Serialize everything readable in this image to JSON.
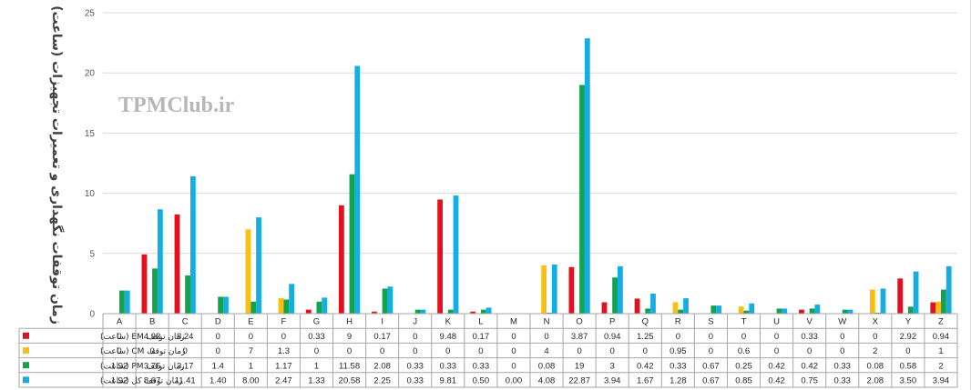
{
  "chart_data": {
    "type": "bar",
    "watermark": "TPMClub.ir",
    "ylabel": "زمان توقفات نگهداری و تعمیرات تجهیزات (ساعت)",
    "ylim": [
      0,
      25
    ],
    "yticks": [
      0,
      5,
      10,
      15,
      20,
      25
    ],
    "grid": true,
    "legend_placement": "data-table-left",
    "categories": [
      "A",
      "B",
      "C",
      "D",
      "E",
      "F",
      "G",
      "H",
      "I",
      "J",
      "K",
      "L",
      "M",
      "N",
      "O",
      "P",
      "Q",
      "R",
      "S",
      "T",
      "U",
      "V",
      "W",
      "X",
      "Y",
      "Z"
    ],
    "series": [
      {
        "name": "زمان توقف EM (ساعت)",
        "color": "#e3111d",
        "values": [
          0,
          4.92,
          8.24,
          0,
          0,
          0,
          0.33,
          9,
          0.17,
          0,
          9.48,
          0.17,
          0,
          0,
          3.87,
          0.94,
          1.25,
          0,
          0,
          0,
          0,
          0.33,
          0,
          0,
          2.92,
          0.94
        ],
        "labels": [
          "0",
          "4.92",
          "8.24",
          "0",
          "0",
          "0",
          "0.33",
          "9",
          "0.17",
          "0",
          "9.48",
          "0.17",
          "0",
          "0",
          "3.87",
          "0.94",
          "1.25",
          "0",
          "0",
          "0",
          "0",
          "0.33",
          "0",
          "0",
          "2.92",
          "0.94"
        ]
      },
      {
        "name": "زمان توقف CM (ساعت)",
        "color": "#fbbf12",
        "values": [
          0,
          0,
          0,
          0,
          7,
          1.3,
          0,
          0,
          0,
          0,
          0,
          0,
          0,
          4,
          0,
          0,
          0,
          0.95,
          0,
          0.6,
          0,
          0,
          0,
          2,
          0,
          1
        ],
        "labels": [
          "0",
          "0",
          "0",
          "0",
          "7",
          "1.3",
          "0",
          "0",
          "0",
          "0",
          "0",
          "0",
          "0",
          "4",
          "0",
          "0",
          "0",
          "0.95",
          "0",
          "0.6",
          "0",
          "0",
          "0",
          "2",
          "0",
          "1"
        ]
      },
      {
        "name": "زمان توقف PM (ساعت)",
        "color": "#13a24d",
        "values": [
          1.92,
          3.75,
          3.17,
          1.4,
          1,
          1.17,
          1,
          11.58,
          2.08,
          0.33,
          0.33,
          0.33,
          0,
          0.08,
          19,
          3,
          0.42,
          0.33,
          0.67,
          0.25,
          0.42,
          0.42,
          0.33,
          0.08,
          0.58,
          2
        ],
        "labels": [
          "1.92",
          "3.75",
          "3.17",
          "1.4",
          "1",
          "1.17",
          "1",
          "11.58",
          "2.08",
          "0.33",
          "0.33",
          "0.33",
          "0",
          "0.08",
          "19",
          "3",
          "0.42",
          "0.33",
          "0.67",
          "0.25",
          "0.42",
          "0.42",
          "0.33",
          "0.08",
          "0.58",
          "2"
        ]
      },
      {
        "name": "زمان توقف کل (ساعت)",
        "color": "#14aee4",
        "values": [
          1.92,
          8.67,
          11.41,
          1.4,
          8.0,
          2.47,
          1.33,
          20.58,
          2.25,
          0.33,
          9.81,
          0.5,
          0.0,
          4.08,
          22.87,
          3.94,
          1.67,
          1.28,
          0.67,
          0.85,
          0.42,
          0.75,
          0.33,
          2.08,
          3.5,
          3.94
        ],
        "labels": [
          "1.92",
          "8.67",
          "11.41",
          "1.40",
          "8.00",
          "2.47",
          "1.33",
          "20.58",
          "2.25",
          "0.33",
          "9.81",
          "0.50",
          "0.00",
          "4.08",
          "22.87",
          "3.94",
          "1.67",
          "1.28",
          "0.67",
          "0.85",
          "0.42",
          "0.75",
          "0.33",
          "2.08",
          "3.50",
          "3.94"
        ]
      }
    ]
  }
}
